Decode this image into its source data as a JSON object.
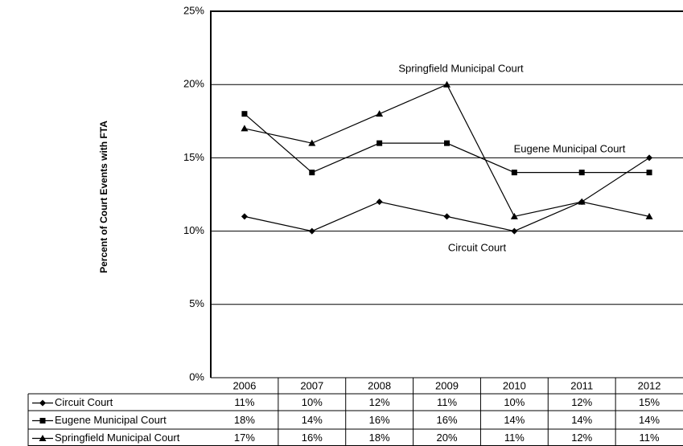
{
  "chart_data": {
    "type": "line",
    "y_label": "Percent of Court Events with FTA",
    "categories": [
      "2006",
      "2007",
      "2008",
      "2009",
      "2010",
      "2011",
      "2012"
    ],
    "series": [
      {
        "name": "Circuit Court",
        "color": "#000000",
        "marker": "diamond",
        "values": [
          11,
          10,
          12,
          11,
          10,
          12,
          15
        ],
        "value_labels": [
          "11%",
          "10%",
          "12%",
          "11%",
          "10%",
          "12%",
          "15%"
        ]
      },
      {
        "name": "Eugene Municipal Court",
        "color": "#000000",
        "marker": "square",
        "values": [
          18,
          14,
          16,
          16,
          14,
          14,
          14
        ],
        "value_labels": [
          "18%",
          "14%",
          "16%",
          "16%",
          "14%",
          "14%",
          "14%"
        ]
      },
      {
        "name": "Springfield Municipal Court",
        "color": "#000000",
        "marker": "triangle",
        "values": [
          17,
          16,
          18,
          20,
          11,
          12,
          11
        ],
        "value_labels": [
          "17%",
          "16%",
          "18%",
          "20%",
          "11%",
          "12%",
          "11%"
        ]
      }
    ],
    "annotations": [
      {
        "text": "Springfield Municipal Court",
        "series": 2
      },
      {
        "text": "Eugene Municipal Court",
        "series": 1
      },
      {
        "text": "Circuit Court",
        "series": 0
      }
    ],
    "ylim": [
      0,
      25
    ],
    "yticks": [
      {
        "value": 0,
        "label": "0%"
      },
      {
        "value": 5,
        "label": "5%"
      },
      {
        "value": 10,
        "label": "10%"
      },
      {
        "value": 15,
        "label": "15%"
      },
      {
        "value": 20,
        "label": "20%"
      },
      {
        "value": 25,
        "label": "25%"
      }
    ],
    "grid": true
  }
}
